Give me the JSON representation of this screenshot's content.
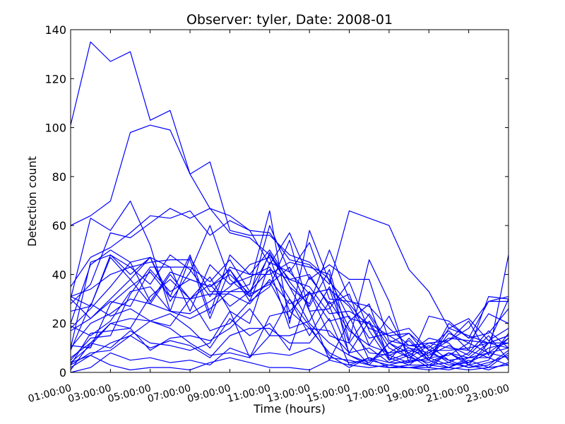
{
  "chart_data": {
    "type": "line",
    "title": "Observer: tyler, Date: 2008-01",
    "xlabel": "Time (hours)",
    "ylabel": "Detection count",
    "ylim": [
      0,
      140
    ],
    "yticks": [
      "0",
      "20",
      "40",
      "60",
      "80",
      "100",
      "120",
      "140"
    ],
    "x": [
      "01:00:00",
      "02:00:00",
      "03:00:00",
      "04:00:00",
      "05:00:00",
      "06:00:00",
      "07:00:00",
      "08:00:00",
      "09:00:00",
      "10:00:00",
      "11:00:00",
      "12:00:00",
      "13:00:00",
      "14:00:00",
      "15:00:00",
      "16:00:00",
      "17:00:00",
      "18:00:00",
      "19:00:00",
      "20:00:00",
      "21:00:00",
      "22:00:00",
      "23:00:00"
    ],
    "xtick_labels": [
      "01:00:00",
      "03:00:00",
      "05:00:00",
      "07:00:00",
      "09:00:00",
      "11:00:00",
      "13:00:00",
      "15:00:00",
      "17:00:00",
      "19:00:00",
      "21:00:00",
      "23:00:00"
    ],
    "line_color": "#0000ff",
    "grid": false,
    "legend": "none",
    "series": [
      {
        "values": [
          101,
          135,
          127,
          131,
          103,
          107,
          81,
          86,
          58,
          56,
          56,
          48,
          45,
          38,
          22,
          20,
          15,
          16,
          9,
          14,
          13,
          12,
          30
        ]
      },
      {
        "values": [
          60,
          64,
          70,
          98,
          101,
          99,
          81,
          67,
          64,
          58,
          57,
          46,
          44,
          36,
          66,
          63,
          60,
          42,
          33,
          18,
          15,
          12,
          15
        ]
      },
      {
        "values": [
          30,
          63,
          58,
          70,
          52,
          25,
          47,
          33,
          33,
          36,
          66,
          20,
          58,
          37,
          28,
          18,
          15,
          10,
          5,
          18,
          22,
          13,
          18
        ]
      },
      {
        "values": [
          35,
          47,
          51,
          57,
          64,
          63,
          66,
          56,
          62,
          58,
          44,
          57,
          38,
          44,
          38,
          38,
          13,
          11,
          10,
          17,
          9,
          6,
          14
        ]
      },
      {
        "values": [
          28,
          36,
          57,
          55,
          61,
          67,
          63,
          67,
          57,
          55,
          48,
          35,
          28,
          50,
          30,
          23,
          10,
          6,
          4,
          8,
          3,
          12,
          15
        ]
      },
      {
        "values": [
          20,
          44,
          50,
          45,
          47,
          29,
          41,
          60,
          38,
          31,
          60,
          41,
          53,
          30,
          29,
          27,
          18,
          11,
          12,
          13,
          18,
          29,
          31
        ]
      },
      {
        "values": [
          25,
          27,
          47,
          38,
          47,
          43,
          43,
          37,
          46,
          33,
          42,
          38,
          40,
          27,
          8,
          21,
          7,
          4,
          8,
          13,
          21,
          7,
          48
        ]
      },
      {
        "values": [
          10,
          45,
          48,
          43,
          45,
          46,
          46,
          22,
          42,
          29,
          35,
          54,
          25,
          5,
          21,
          28,
          5,
          14,
          5,
          20,
          14,
          16,
          26
        ]
      },
      {
        "values": [
          31,
          27,
          48,
          40,
          47,
          31,
          48,
          24,
          48,
          40,
          50,
          37,
          27,
          42,
          13,
          46,
          29,
          4,
          23,
          21,
          14,
          29,
          29
        ]
      },
      {
        "values": [
          31,
          34,
          40,
          43,
          36,
          48,
          42,
          31,
          43,
          40,
          40,
          45,
          43,
          40,
          7,
          3,
          12,
          16,
          6,
          7,
          12,
          24,
          20
        ]
      },
      {
        "values": [
          18,
          26,
          35,
          45,
          29,
          41,
          38,
          35,
          42,
          31,
          37,
          22,
          39,
          28,
          32,
          11,
          23,
          7,
          12,
          10,
          9,
          31,
          30
        ]
      },
      {
        "values": [
          17,
          22,
          30,
          38,
          28,
          40,
          30,
          32,
          32,
          28,
          38,
          28,
          32,
          34,
          27,
          14,
          16,
          18,
          9,
          9,
          10,
          12,
          12
        ]
      },
      {
        "values": [
          5,
          14,
          15,
          32,
          43,
          43,
          25,
          44,
          36,
          39,
          43,
          30,
          15,
          29,
          17,
          11,
          8,
          13,
          5,
          16,
          12,
          8,
          10
        ]
      },
      {
        "values": [
          30,
          22,
          29,
          27,
          42,
          33,
          38,
          35,
          40,
          32,
          36,
          43,
          25,
          26,
          37,
          17,
          5,
          8,
          14,
          12,
          3,
          5,
          16
        ]
      },
      {
        "values": [
          11,
          10,
          28,
          35,
          41,
          31,
          30,
          39,
          25,
          20,
          45,
          41,
          32,
          34,
          12,
          24,
          12,
          6,
          11,
          5,
          6,
          8,
          6
        ]
      },
      {
        "values": [
          6,
          12,
          20,
          18,
          31,
          38,
          30,
          36,
          27,
          33,
          48,
          38,
          35,
          24,
          25,
          20,
          6,
          3,
          9,
          4,
          8,
          17,
          10
        ]
      },
      {
        "values": [
          10,
          20,
          24,
          30,
          28,
          25,
          24,
          29,
          35,
          44,
          47,
          25,
          33,
          21,
          23,
          5,
          8,
          9,
          7,
          11,
          7,
          15,
          5
        ]
      },
      {
        "values": [
          19,
          15,
          21,
          33,
          35,
          25,
          22,
          26,
          33,
          33,
          42,
          18,
          21,
          35,
          18,
          8,
          7,
          10,
          8,
          5,
          2,
          3,
          9
        ]
      },
      {
        "values": [
          9,
          28,
          23,
          26,
          21,
          19,
          30,
          17,
          20,
          29,
          49,
          35,
          20,
          12,
          7,
          4,
          12,
          8,
          3,
          8,
          4,
          8,
          14
        ]
      },
      {
        "values": [
          3,
          16,
          17,
          18,
          9,
          14,
          15,
          13,
          18,
          26,
          15,
          30,
          19,
          7,
          2,
          6,
          4,
          7,
          2,
          8,
          6,
          12,
          10
        ]
      },
      {
        "values": [
          4,
          11,
          20,
          22,
          21,
          24,
          18,
          10,
          22,
          15,
          20,
          9,
          33,
          15,
          12,
          3,
          2,
          3,
          3,
          2,
          5,
          2,
          8
        ]
      },
      {
        "values": [
          1,
          12,
          10,
          17,
          12,
          11,
          9,
          12,
          25,
          6,
          23,
          25,
          18,
          17,
          8,
          10,
          4,
          4,
          6,
          3,
          4,
          10,
          12
        ]
      },
      {
        "values": [
          3,
          8,
          9,
          15,
          21,
          18,
          12,
          7,
          8,
          6,
          15,
          15,
          18,
          8,
          4,
          5,
          3,
          5,
          5,
          2,
          6,
          6,
          3
        ]
      },
      {
        "values": [
          2,
          7,
          12,
          15,
          10,
          13,
          11,
          6,
          15,
          18,
          18,
          12,
          12,
          22,
          3,
          6,
          2,
          2,
          3,
          4,
          2,
          4,
          7
        ]
      },
      {
        "values": [
          4,
          7,
          3,
          1,
          2,
          2,
          1,
          4,
          6,
          4,
          2,
          2,
          1,
          5,
          3,
          2,
          3,
          2,
          2,
          1,
          3,
          1,
          4
        ]
      },
      {
        "values": [
          0,
          2,
          8,
          5,
          6,
          4,
          5,
          3,
          10,
          7,
          8,
          7,
          10,
          6,
          5,
          3,
          2,
          2,
          1,
          2,
          1,
          2,
          3
        ]
      }
    ]
  }
}
